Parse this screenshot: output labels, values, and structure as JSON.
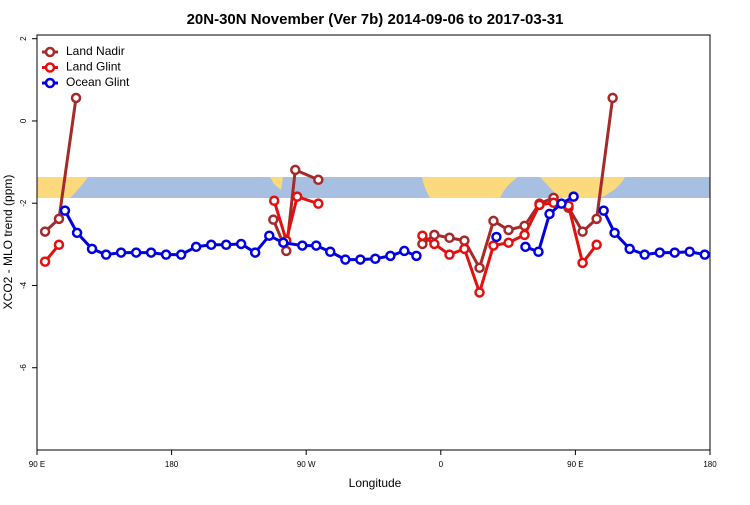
{
  "chart_data": {
    "type": "line",
    "title": "20N-30N November (Ver 7b)   2014-09-06 to 2017-03-31",
    "x_label": "Longitude",
    "y_label": "XCO2 - MLO trend (ppm)",
    "xlim": [
      90,
      540
    ],
    "ylim": [
      -8,
      2.09
    ],
    "xticks": [
      {
        "value": 90,
        "label": "90 E"
      },
      180,
      {
        "value": 270,
        "label": "90 W"
      },
      {
        "value": 360,
        "label": "0"
      },
      {
        "value": 450,
        "label": "90 E"
      },
      {
        "value": 540,
        "label": "180"
      }
    ],
    "yticks": [
      2,
      0,
      -2,
      -4,
      -6
    ],
    "legend": "top-left",
    "series": [
      {
        "name": "Land Nadir",
        "color": "#a52a2a",
        "x": [
          95.4,
          104.7,
          116.1,
          null,
          248,
          256.7,
          262.7,
          278.1,
          null,
          347.7,
          355.7,
          365.8,
          375.8,
          385.9,
          395.2,
          405.3,
          416,
          426,
          435.4,
          445.4,
          454.8,
          464.2,
          474.9
        ],
        "values": [
          -2.69,
          -2.38,
          0.56,
          null,
          -2.4,
          -3.16,
          -1.19,
          -1.43,
          null,
          -2.99,
          -2.77,
          -2.84,
          -2.91,
          -3.57,
          -2.43,
          -2.65,
          -2.55,
          -2.01,
          -1.87,
          -2.11,
          -2.69,
          -2.38,
          0.56
        ]
      },
      {
        "name": "Land Glint",
        "color": "#e41010",
        "x": [
          95.4,
          104.7,
          null,
          248.6,
          256.7,
          264,
          278.1,
          null,
          347.7,
          355.7,
          365.8,
          375.8,
          385.9,
          395.2,
          405.3,
          416,
          426,
          435.4,
          445.4,
          454.8,
          464.2
        ],
        "values": [
          -3.42,
          -3.01,
          null,
          -1.94,
          -2.91,
          -1.84,
          -2.01,
          null,
          -2.79,
          -2.99,
          -3.25,
          -3.11,
          -4.17,
          -3.03,
          -2.96,
          -2.77,
          -2.04,
          -1.99,
          -2.06,
          -3.45,
          -3.01
        ]
      },
      {
        "name": "Ocean Glint",
        "color": "#0000e0",
        "x": [
          108.7,
          116.8,
          126.8,
          136.2,
          146.2,
          156.3,
          166.3,
          176.3,
          186.4,
          196.4,
          206.5,
          216.5,
          226.5,
          235.9,
          245.3,
          254.7,
          267.4,
          276.7,
          286.1,
          296.2,
          306.2,
          316.2,
          326.3,
          335.6,
          343.7,
          null,
          397.2,
          null,
          416.6,
          425.3,
          432.7,
          440.7,
          448.8,
          null,
          468.9,
          476.2,
          486.3,
          496.3,
          506.4,
          516.4,
          526.4,
          536.5
        ],
        "values": [
          -2.18,
          -2.72,
          -3.11,
          -3.25,
          -3.2,
          -3.2,
          -3.2,
          -3.25,
          -3.25,
          -3.06,
          -3.01,
          -3.01,
          -2.99,
          -3.2,
          -2.79,
          -2.96,
          -3.03,
          -3.03,
          -3.18,
          -3.37,
          -3.37,
          -3.35,
          -3.28,
          -3.16,
          -3.28,
          null,
          -2.82,
          null,
          -3.06,
          -3.18,
          -2.26,
          -2.01,
          -1.84,
          null,
          -2.18,
          -2.72,
          -3.11,
          -3.25,
          -3.2,
          -3.2,
          -3.18,
          -3.25
        ]
      }
    ]
  }
}
